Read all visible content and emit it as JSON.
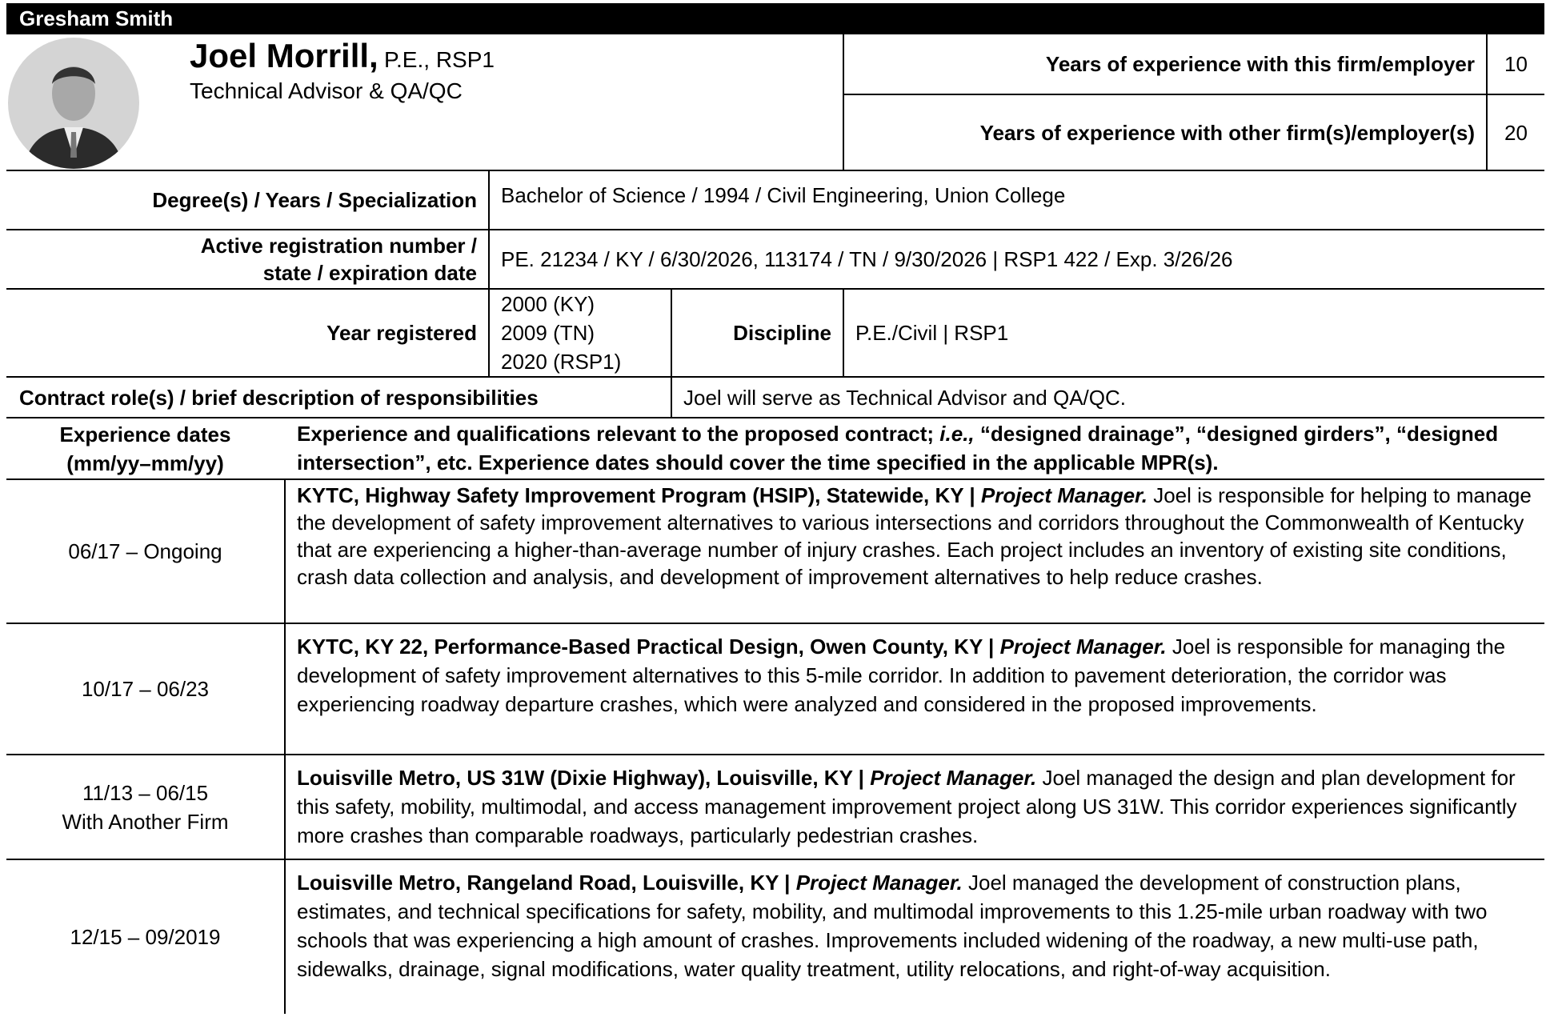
{
  "header": {
    "company": "Gresham Smith"
  },
  "person": {
    "name": "Joel Morrill,",
    "credentials": "P.E., RSP1",
    "title": "Technical Advisor & QA/QC"
  },
  "experience_years": [
    {
      "label": "Years of experience with this firm/employer",
      "value": 10
    },
    {
      "label": "Years of experience with other firm(s)/employer(s)",
      "value": 20
    }
  ],
  "degree": {
    "label": "Degree(s) / Years / Specialization",
    "value": "Bachelor of Science / 1994 / Civil Engineering, Union College"
  },
  "registration": {
    "label_lines": [
      "Active registration number /",
      "state / expiration date"
    ],
    "value": "PE. 21234 / KY / 6/30/2026, 113174 / TN / 9/30/2026 | RSP1 422 / Exp. 3/26/26"
  },
  "year_registered": {
    "label": "Year registered",
    "values": [
      "2000 (KY)",
      "2009 (TN)",
      "2020 (RSP1)"
    ]
  },
  "discipline": {
    "label": "Discipline",
    "value": "P.E./Civil | RSP1"
  },
  "contract_role": {
    "label": "Contract role(s) / brief description of responsibilities",
    "value": "Joel will serve as Technical Advisor and QA/QC."
  },
  "experience_table": {
    "header": {
      "dates_lines": [
        "Experience dates",
        "(mm/yy–mm/yy)"
      ],
      "description_parts": [
        "Experience and qualifications relevant to the proposed contract;",
        "i.e.,",
        "“designed drainage”, “designed girders”, “designed intersection”, etc. Experience dates should cover the time specified in the applicable MPR(s)."
      ]
    },
    "rows": [
      {
        "dates": [
          "06/17 – Ongoing"
        ],
        "project": "KYTC, Highway Safety Improvement Program (HSIP), Statewide, KY |",
        "role": "Project Manager.",
        "description": "Joel is responsible for helping to manage the development of safety improvement alternatives to various intersections and corridors throughout the Commonwealth of Kentucky that are experiencing a higher-than-average number of injury crashes. Each project includes an inventory of existing site conditions, crash data collection and analysis, and development of improvement alternatives to help reduce crashes."
      },
      {
        "dates": [
          "10/17 – 06/23"
        ],
        "project": "KYTC, KY 22, Performance-Based Practical Design, Owen County, KY |",
        "role": "Project Manager.",
        "description": "Joel is responsible for managing the development of safety improvement alternatives to this 5-mile corridor. In addition to pavement deterioration, the corridor was experiencing roadway departure crashes, which were analyzed and considered in the proposed improvements."
      },
      {
        "dates": [
          "11/13 – 06/15",
          "With Another Firm"
        ],
        "project": "Louisville Metro, US 31W (Dixie Highway), Louisville, KY |",
        "role": "Project Manager.",
        "description": "Joel managed the design and plan development for this safety, mobility, multimodal, and access management improvement project along US 31W. This corridor experiences significantly more crashes than comparable roadways, particularly pedestrian crashes."
      },
      {
        "dates": [
          "12/15 – 09/2019"
        ],
        "project": "Louisville Metro, Rangeland Road, Louisville, KY |",
        "role": "Project Manager.",
        "description": "Joel managed the development of construction plans, estimates, and technical specifications for safety, mobility, and multimodal improvements to this 1.25-mile urban roadway with two schools that was experiencing a high amount of crashes. Improvements included widening of the roadway, a new multi-use path, sidewalks, drainage, signal modifications, water quality treatment, utility relocations, and right-of-way acquisition."
      }
    ]
  }
}
